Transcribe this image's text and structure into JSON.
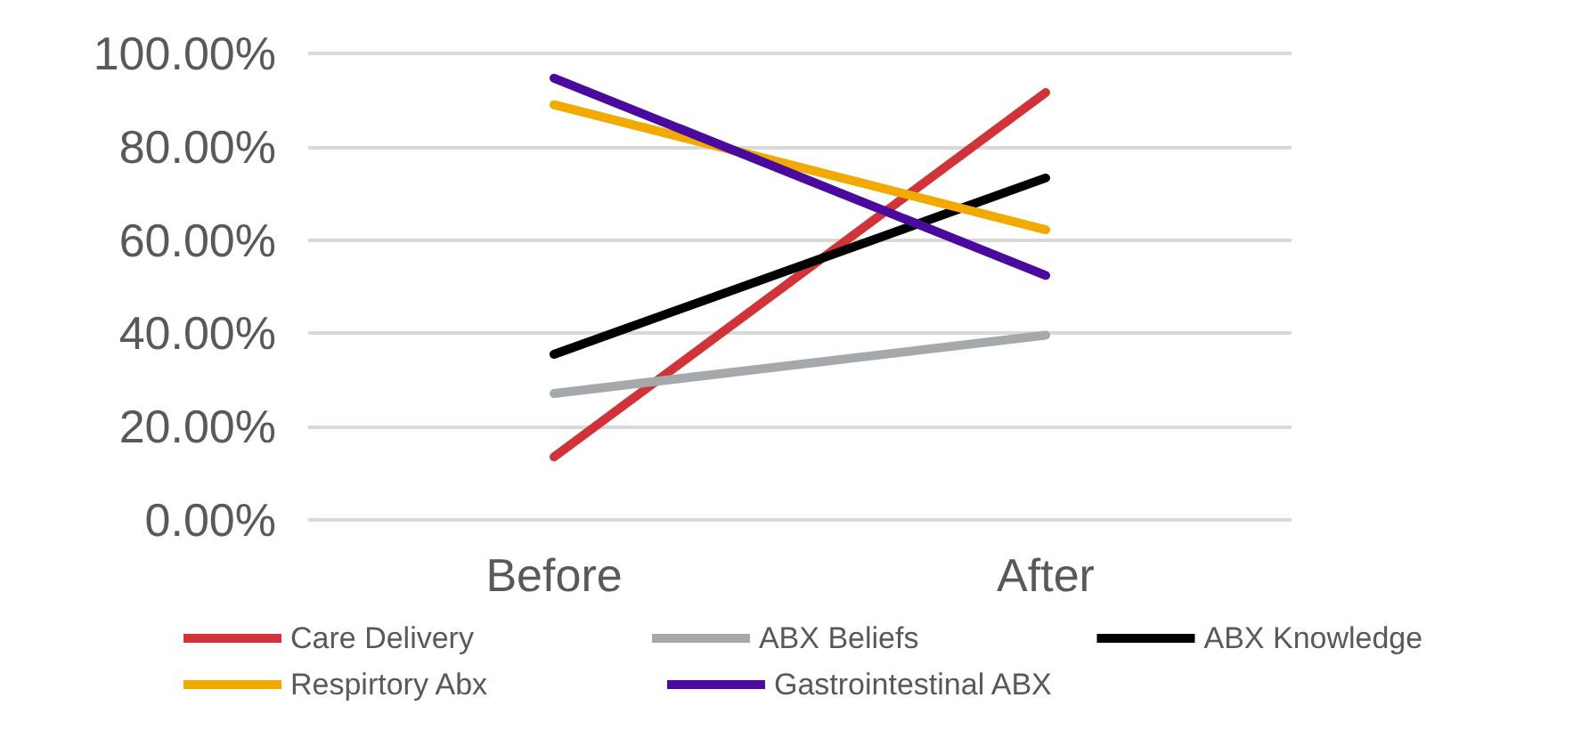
{
  "chart_data": {
    "type": "line",
    "categories": [
      "Before",
      "After"
    ],
    "series": [
      {
        "name": "Care Delivery",
        "color": "#d13438",
        "values": [
          13.5,
          91.6
        ]
      },
      {
        "name": "ABX Beliefs",
        "color": "#a5a9ab",
        "values": [
          27.1,
          39.6
        ]
      },
      {
        "name": "ABX Knowledge",
        "color": "#000000",
        "values": [
          35.5,
          73.3
        ]
      },
      {
        "name": "Respirtory Abx",
        "color": "#f2a900",
        "values": [
          89.0,
          62.2
        ]
      },
      {
        "name": "Gastrointestinal ABX",
        "color": "#4b0a9e",
        "values": [
          94.7,
          52.4
        ]
      }
    ],
    "ylim": [
      0,
      100
    ],
    "yticks": [
      {
        "value": 0,
        "label": "0.00%"
      },
      {
        "value": 20,
        "label": "20.00%"
      },
      {
        "value": 40,
        "label": "40.00%"
      },
      {
        "value": 60,
        "label": "60.00%"
      },
      {
        "value": 80,
        "label": "80.00%"
      },
      {
        "value": 100,
        "label": "100.00%"
      }
    ],
    "grid": "y",
    "legend": "bottom",
    "marker": "none",
    "line_style": "solid"
  }
}
